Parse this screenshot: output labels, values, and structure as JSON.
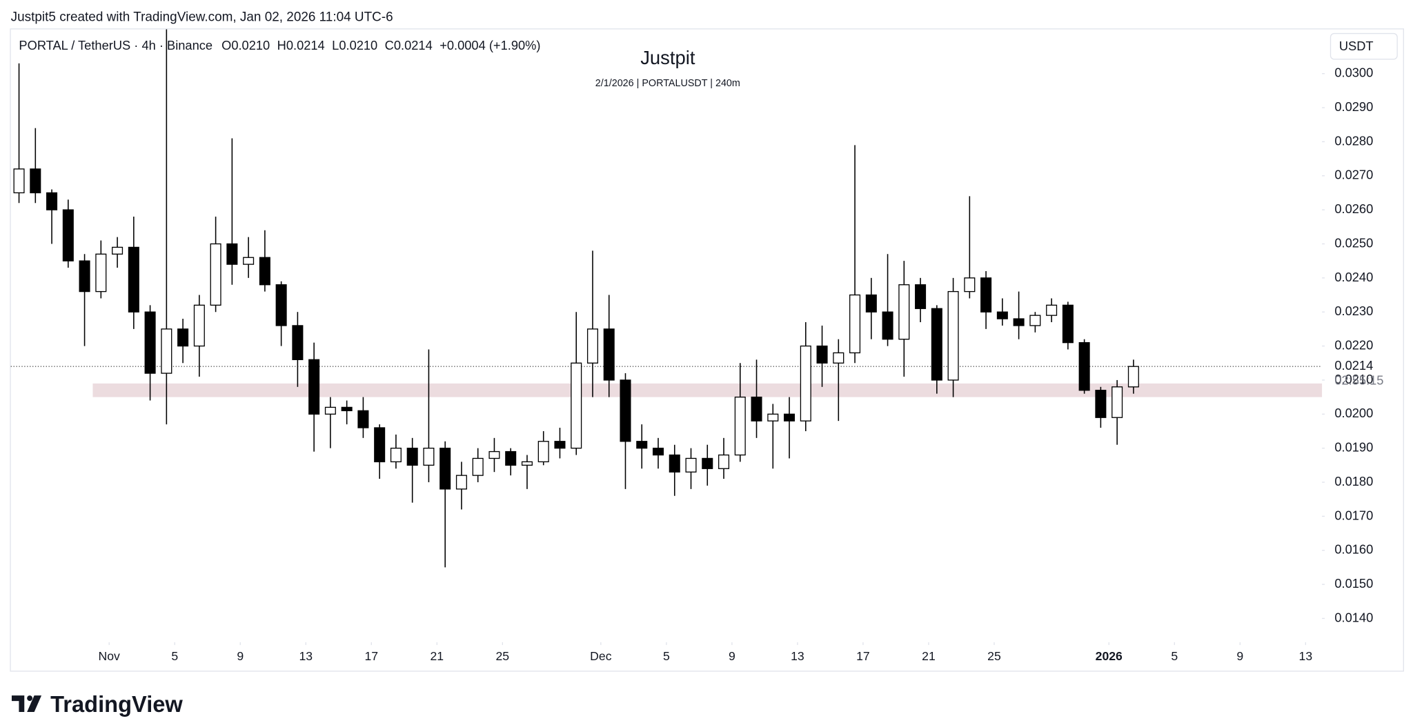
{
  "header": {
    "credit": "Justpit5 created with TradingView.com, Jan 02, 2026 11:04 UTC-6"
  },
  "chart_data": {
    "type": "candlestick",
    "title": "Justpit",
    "subtitle": "2/1/2026 | PORTALUSDT | 240m",
    "symbol": "PORTAL / TetherUS · 4h · Binance",
    "ohlc_legend": [
      "O0.0210",
      "H0.0214",
      "L0.0210",
      "C0.0214",
      "+0.0004 (+1.90%)"
    ],
    "currency": "USDT",
    "last_price": 0.0214,
    "countdown": "02:55:15",
    "zone": [
      0.0205,
      0.0209
    ],
    "zone_start": "Oct 31",
    "zone_color": "#ecdcdf",
    "up_color": "#ffffff",
    "down_color": "#000000",
    "x": [
      "Oct 26",
      "Oct 27",
      "Oct 28",
      "Oct 29",
      "Oct 30",
      "Oct 31",
      "Nov 1",
      "Nov 2",
      "Nov 3",
      "Nov 4",
      "Nov 5",
      "Nov 6",
      "Nov 7",
      "Nov 8",
      "Nov 9",
      "Nov 10",
      "Nov 11",
      "Nov 12",
      "Nov 13",
      "Nov 14",
      "Nov 15",
      "Nov 16",
      "Nov 17",
      "Nov 18",
      "Nov 19",
      "Nov 20",
      "Nov 21",
      "Nov 22",
      "Nov 23",
      "Nov 24",
      "Nov 25",
      "Nov 26",
      "Nov 27",
      "Nov 28",
      "Nov 29",
      "Nov 30",
      "Dec 1",
      "Dec 2",
      "Dec 3",
      "Dec 4",
      "Dec 5",
      "Dec 6",
      "Dec 7",
      "Dec 8",
      "Dec 9",
      "Dec 10",
      "Dec 11",
      "Dec 12",
      "Dec 13",
      "Dec 14",
      "Dec 15",
      "Dec 16",
      "Dec 17",
      "Dec 18",
      "Dec 19",
      "Dec 20",
      "Dec 21",
      "Dec 22",
      "Dec 23",
      "Dec 24",
      "Dec 25",
      "Dec 26",
      "Dec 27",
      "Dec 28",
      "Dec 29",
      "Dec 30",
      "Dec 31",
      "Jan 1",
      "Jan 2"
    ],
    "open": [
      0.0265,
      0.0272,
      0.0265,
      0.026,
      0.0245,
      0.0236,
      0.0247,
      0.0249,
      0.023,
      0.0212,
      0.0225,
      0.022,
      0.0232,
      0.025,
      0.0244,
      0.0246,
      0.0238,
      0.0226,
      0.0216,
      0.02,
      0.0202,
      0.0201,
      0.0196,
      0.0186,
      0.019,
      0.0185,
      0.019,
      0.0178,
      0.0182,
      0.0187,
      0.0189,
      0.0185,
      0.0186,
      0.0192,
      0.019,
      0.0215,
      0.0225,
      0.021,
      0.0192,
      0.019,
      0.0188,
      0.0183,
      0.0187,
      0.0184,
      0.0188,
      0.0205,
      0.0198,
      0.02,
      0.0198,
      0.022,
      0.0215,
      0.0218,
      0.0235,
      0.023,
      0.0222,
      0.0238,
      0.0231,
      0.021,
      0.0236,
      0.024,
      0.023,
      0.0228,
      0.0226,
      0.0229,
      0.0232,
      0.0221,
      0.0207,
      0.0199,
      0.0208
    ],
    "high": [
      0.0303,
      0.0284,
      0.0266,
      0.0263,
      0.0247,
      0.0251,
      0.0252,
      0.0258,
      0.0232,
      0.0313,
      0.0228,
      0.0235,
      0.0258,
      0.0281,
      0.0252,
      0.0254,
      0.0239,
      0.023,
      0.0221,
      0.0205,
      0.0204,
      0.0205,
      0.0197,
      0.0194,
      0.0193,
      0.0219,
      0.0192,
      0.0186,
      0.019,
      0.0193,
      0.019,
      0.0188,
      0.0195,
      0.0196,
      0.023,
      0.0248,
      0.0235,
      0.0212,
      0.0197,
      0.0193,
      0.0191,
      0.019,
      0.0191,
      0.0193,
      0.0215,
      0.0216,
      0.0203,
      0.0205,
      0.0227,
      0.0226,
      0.0222,
      0.0279,
      0.024,
      0.0247,
      0.0245,
      0.024,
      0.0232,
      0.024,
      0.0264,
      0.0242,
      0.0234,
      0.0236,
      0.023,
      0.0234,
      0.0233,
      0.0222,
      0.0208,
      0.021,
      0.0216
    ],
    "low": [
      0.0262,
      0.0262,
      0.025,
      0.0243,
      0.022,
      0.0234,
      0.0243,
      0.0225,
      0.0204,
      0.0197,
      0.0215,
      0.0211,
      0.023,
      0.0238,
      0.024,
      0.0236,
      0.022,
      0.0208,
      0.0189,
      0.019,
      0.0197,
      0.0193,
      0.0181,
      0.0184,
      0.0174,
      0.018,
      0.0155,
      0.0172,
      0.018,
      0.0183,
      0.0182,
      0.0178,
      0.0185,
      0.0187,
      0.0188,
      0.0205,
      0.0205,
      0.0178,
      0.0184,
      0.0184,
      0.0176,
      0.0178,
      0.0179,
      0.0181,
      0.0186,
      0.0193,
      0.0184,
      0.0187,
      0.0195,
      0.0208,
      0.0198,
      0.0215,
      0.0222,
      0.022,
      0.0211,
      0.0227,
      0.0206,
      0.0205,
      0.0234,
      0.0225,
      0.0226,
      0.0222,
      0.0224,
      0.0227,
      0.0219,
      0.0206,
      0.0196,
      0.0191,
      0.0206
    ],
    "close": [
      0.0272,
      0.0265,
      0.026,
      0.0245,
      0.0236,
      0.0247,
      0.0249,
      0.023,
      0.0212,
      0.0225,
      0.022,
      0.0232,
      0.025,
      0.0244,
      0.0246,
      0.0238,
      0.0226,
      0.0216,
      0.02,
      0.0202,
      0.0201,
      0.0196,
      0.0186,
      0.019,
      0.0185,
      0.019,
      0.0178,
      0.0182,
      0.0187,
      0.0189,
      0.0185,
      0.0186,
      0.0192,
      0.019,
      0.0215,
      0.0225,
      0.021,
      0.0192,
      0.019,
      0.0188,
      0.0183,
      0.0187,
      0.0184,
      0.0188,
      0.0205,
      0.0198,
      0.02,
      0.0198,
      0.022,
      0.0215,
      0.0218,
      0.0235,
      0.023,
      0.0222,
      0.0238,
      0.0231,
      0.021,
      0.0236,
      0.024,
      0.023,
      0.0228,
      0.0226,
      0.0229,
      0.0232,
      0.0221,
      0.0207,
      0.0199,
      0.0208,
      0.0214
    ],
    "xlim": [
      "Oct 26",
      "Jan 14"
    ],
    "xticks": [
      {
        "value": "Nov 1",
        "label": "Nov"
      },
      {
        "value": "Nov 5",
        "label": "5"
      },
      {
        "value": "Nov 9",
        "label": "9"
      },
      {
        "value": "Nov 13",
        "label": "13"
      },
      {
        "value": "Nov 17",
        "label": "17"
      },
      {
        "value": "Nov 21",
        "label": "21"
      },
      {
        "value": "Nov 25",
        "label": "25"
      },
      {
        "value": "Dec 1",
        "label": "Dec"
      },
      {
        "value": "Dec 5",
        "label": "5"
      },
      {
        "value": "Dec 9",
        "label": "9"
      },
      {
        "value": "Dec 13",
        "label": "13"
      },
      {
        "value": "Dec 17",
        "label": "17"
      },
      {
        "value": "Dec 21",
        "label": "21"
      },
      {
        "value": "Dec 25",
        "label": "25"
      },
      {
        "value": "Jan 1",
        "label": "2026"
      },
      {
        "value": "Jan 5",
        "label": "5"
      },
      {
        "value": "Jan 9",
        "label": "9"
      },
      {
        "value": "Jan 13",
        "label": "13"
      }
    ],
    "ylim": [
      0.0133,
      0.0313
    ],
    "yticks": [
      {
        "value": 0.014,
        "label": "0.0140"
      },
      {
        "value": 0.015,
        "label": "0.0150"
      },
      {
        "value": 0.016,
        "label": "0.0160"
      },
      {
        "value": 0.017,
        "label": "0.0170"
      },
      {
        "value": 0.018,
        "label": "0.0180"
      },
      {
        "value": 0.019,
        "label": "0.0190"
      },
      {
        "value": 0.02,
        "label": "0.0200"
      },
      {
        "value": 0.021,
        "label": "0.0210"
      },
      {
        "value": 0.022,
        "label": "0.0220"
      },
      {
        "value": 0.023,
        "label": "0.0230"
      },
      {
        "value": 0.024,
        "label": "0.0240"
      },
      {
        "value": 0.025,
        "label": "0.0250"
      },
      {
        "value": 0.026,
        "label": "0.0260"
      },
      {
        "value": 0.027,
        "label": "0.0270"
      },
      {
        "value": 0.028,
        "label": "0.0280"
      },
      {
        "value": 0.029,
        "label": "0.0290"
      },
      {
        "value": 0.03,
        "label": "0.0300"
      }
    ]
  },
  "footer": {
    "logo": "TradingView"
  }
}
